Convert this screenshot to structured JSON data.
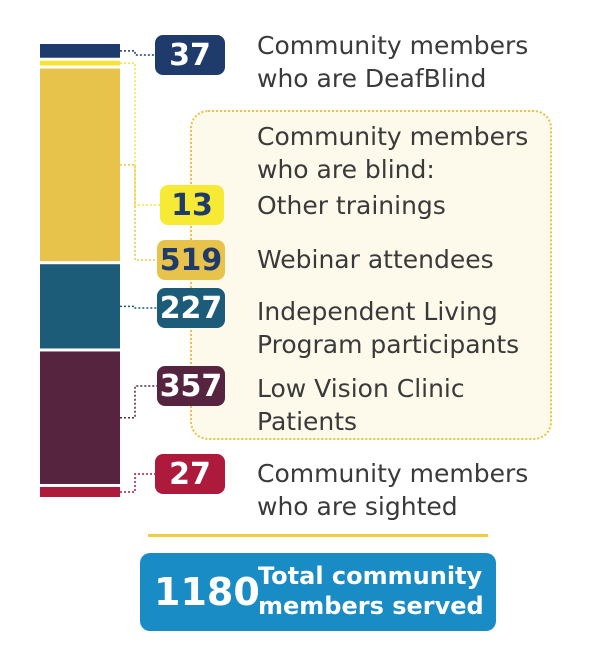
{
  "chart_data": {
    "type": "bar",
    "title": "",
    "stacked": true,
    "categories": [
      "Total"
    ],
    "series": [
      {
        "name": "Community members who are DeafBlind",
        "values": [
          37
        ],
        "color": "#1f3b6b"
      },
      {
        "name": "Other trainings",
        "values": [
          13
        ],
        "color": "#f5e33a"
      },
      {
        "name": "Webinar attendees",
        "values": [
          519
        ],
        "color": "#e7c34c"
      },
      {
        "name": "Independent Living Program participants",
        "values": [
          227
        ],
        "color": "#1d5c78"
      },
      {
        "name": "Low Vision Clinic Patients",
        "values": [
          357
        ],
        "color": "#56243f"
      },
      {
        "name": "Community members who are sighted",
        "values": [
          27
        ],
        "color": "#ad1a3c"
      }
    ],
    "group_label": "Community members who are blind:",
    "total_value": "1180",
    "total_label": "Total community members served"
  },
  "labels": [
    {
      "value": "37",
      "line1": "Community members",
      "line2": "who are DeafBlind",
      "badge_bg": "#1f3b6b",
      "badge_fg": "#ffffff"
    },
    {
      "value": "13",
      "line1": "Other trainings",
      "line2": "",
      "badge_bg": "#f7ea34",
      "badge_fg": "#1f3b6b"
    },
    {
      "value": "519",
      "line1": "Webinar attendees",
      "line2": "",
      "badge_bg": "#e7c34c",
      "badge_fg": "#1f3b6b"
    },
    {
      "value": "227",
      "line1": "Independent Living",
      "line2": "Program participants",
      "badge_bg": "#1d5c78",
      "badge_fg": "#ffffff"
    },
    {
      "value": "357",
      "line1": "Low Vision Clinic",
      "line2": "Patients",
      "badge_bg": "#56243f",
      "badge_fg": "#ffffff"
    },
    {
      "value": "27",
      "line1": "Community members",
      "line2": "who are sighted",
      "badge_bg": "#ad1a3c",
      "badge_fg": "#ffffff"
    }
  ],
  "blind_group": {
    "line1": "Community members",
    "line2": "who are blind:"
  },
  "total": {
    "value": "1180",
    "line1": "Total community",
    "line2": "members served"
  }
}
